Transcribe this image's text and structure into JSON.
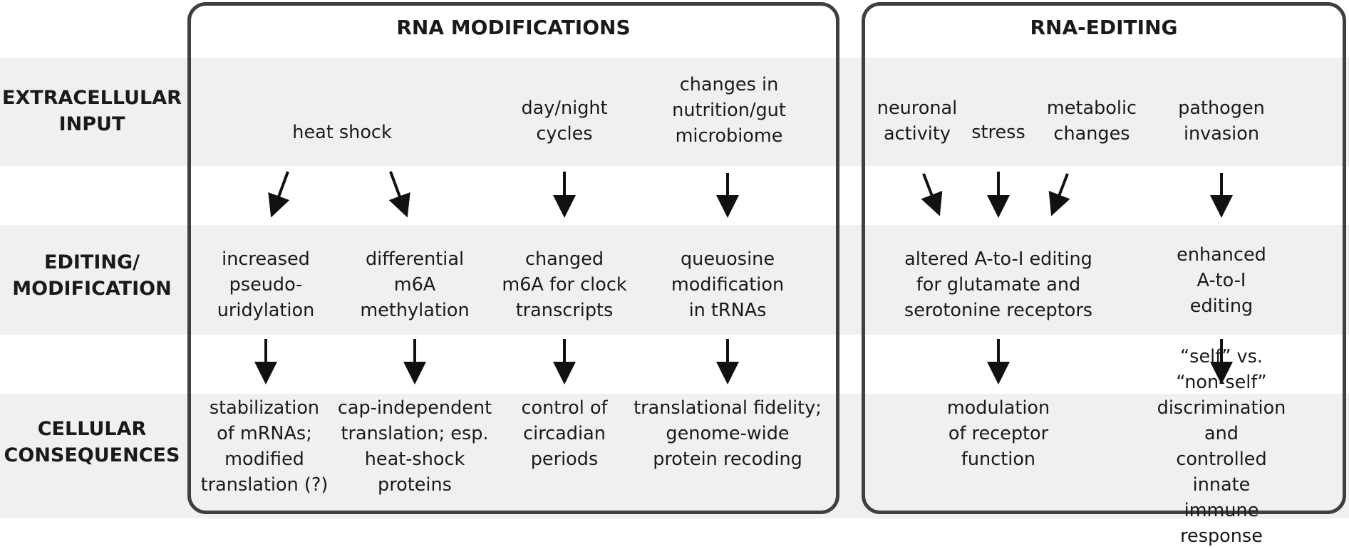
{
  "row_labels": {
    "input": "EXTRACELLULAR\nINPUT",
    "editing": "EDITING/\nMODIFICATION",
    "consequences": "CELLULAR\nCONSEQUENCES"
  },
  "panels": {
    "modifications": {
      "title": "RNA MODIFICATIONS",
      "inputs": [
        "heat shock",
        "day/night\ncycles",
        "changes in\nnutrition/gut\nmicrobiome"
      ],
      "editing": [
        "increased\npseudo-\nuridylation",
        "differential\nm6A\nmethylation",
        "changed\nm6A for clock\ntranscripts",
        "queuosine\nmodification\nin tRNAs"
      ],
      "consequences": [
        "stabilization\nof mRNAs;\nmodified\ntranslation (?)",
        "cap-independent\ntranslation; esp.\nheat-shock\nproteins",
        "control of\ncircadian\nperiods",
        "translational fidelity;\ngenome-wide\nprotein recoding"
      ]
    },
    "editing": {
      "title": "RNA-EDITING",
      "inputs": [
        "neuronal\nactivity",
        "stress",
        "metabolic\nchanges",
        "pathogen\ninvasion"
      ],
      "editing": [
        "altered A-to-I editing\nfor glutamate and\nserotonine receptors",
        "enhanced\nA-to-I\nediting"
      ],
      "consequences": [
        "modulation\nof receptor\nfunction",
        "“self” vs. “non-self”\ndiscrimination\nand controlled\ninnate immune response"
      ]
    }
  },
  "colors": {
    "band": "#f0f0f0",
    "border": "#3f3f3f",
    "arrow": "#111111"
  }
}
